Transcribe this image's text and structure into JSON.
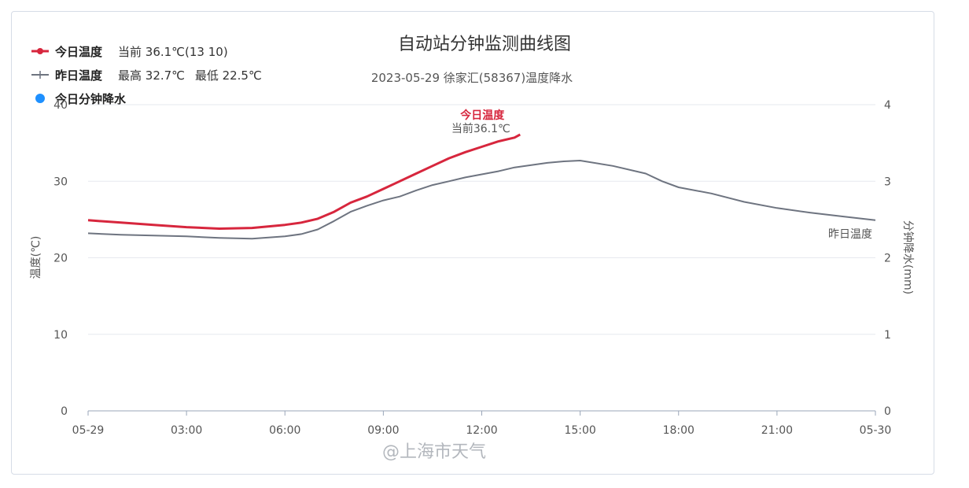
{
  "title": "自动站分钟监测曲线图",
  "subtitle": "2023-05-29 徐家汇(58367)温度降水",
  "legend": {
    "today": {
      "name": "今日温度",
      "current_label": "当前 36.1℃(13 10)",
      "color": "#d7263d"
    },
    "yesterday": {
      "name": "昨日温度",
      "max_label": "最高 32.7℃",
      "min_label": "最低 22.5℃",
      "color": "#6e7480"
    },
    "precip": {
      "name": "今日分钟降水",
      "color": "#1e90ff"
    }
  },
  "annotations": {
    "today_name": "今日温度",
    "today_current": "当前36.1℃",
    "yesterday_name": "昨日温度"
  },
  "watermark": "@上海市天气",
  "chart_data": {
    "type": "line",
    "title": "自动站分钟监测曲线图",
    "subtitle": "2023-05-29 徐家汇(58367)温度降水",
    "xlabel": "",
    "ylabel": "温度(℃)",
    "y2label": "分钟降水(mm)",
    "xlim": [
      0,
      24
    ],
    "ylim": [
      0,
      40
    ],
    "y2lim": [
      0,
      4
    ],
    "x_ticks": [
      0,
      3,
      6,
      9,
      12,
      15,
      18,
      21,
      24
    ],
    "x_tick_labels": [
      "05-29",
      "03:00",
      "06:00",
      "09:00",
      "12:00",
      "15:00",
      "18:00",
      "21:00",
      "05-30"
    ],
    "y_ticks": [
      0,
      10,
      20,
      30,
      40
    ],
    "y2_ticks": [
      0,
      1,
      2,
      3,
      4
    ],
    "grid": true,
    "legend_position": "top-left",
    "series": [
      {
        "name": "今日温度",
        "color": "#d7263d",
        "x": [
          0,
          1,
          2,
          3,
          4,
          5,
          6,
          6.5,
          7,
          7.5,
          8,
          8.5,
          9,
          9.5,
          10,
          10.5,
          11,
          11.5,
          12,
          12.5,
          13,
          13.17
        ],
        "y": [
          24.9,
          24.6,
          24.3,
          24.0,
          23.8,
          23.9,
          24.3,
          24.6,
          25.1,
          26.0,
          27.2,
          28.0,
          29.0,
          30.0,
          31.0,
          32.0,
          33.0,
          33.8,
          34.5,
          35.2,
          35.7,
          36.1
        ]
      },
      {
        "name": "昨日温度",
        "color": "#6e7480",
        "x": [
          0,
          1,
          2,
          3,
          4,
          5,
          6,
          6.5,
          7,
          7.5,
          8,
          8.5,
          9,
          9.5,
          10,
          10.5,
          11,
          11.5,
          12,
          12.5,
          13,
          14,
          14.5,
          15,
          16,
          17,
          17.5,
          18,
          19,
          20,
          21,
          22,
          23,
          24
        ],
        "y": [
          23.2,
          23.0,
          22.9,
          22.8,
          22.6,
          22.5,
          22.8,
          23.1,
          23.7,
          24.8,
          26.0,
          26.8,
          27.5,
          28.0,
          28.8,
          29.5,
          30.0,
          30.5,
          30.9,
          31.3,
          31.8,
          32.4,
          32.6,
          32.7,
          32.0,
          31.0,
          30.0,
          29.2,
          28.4,
          27.3,
          26.5,
          25.9,
          25.4,
          24.9
        ]
      }
    ]
  }
}
